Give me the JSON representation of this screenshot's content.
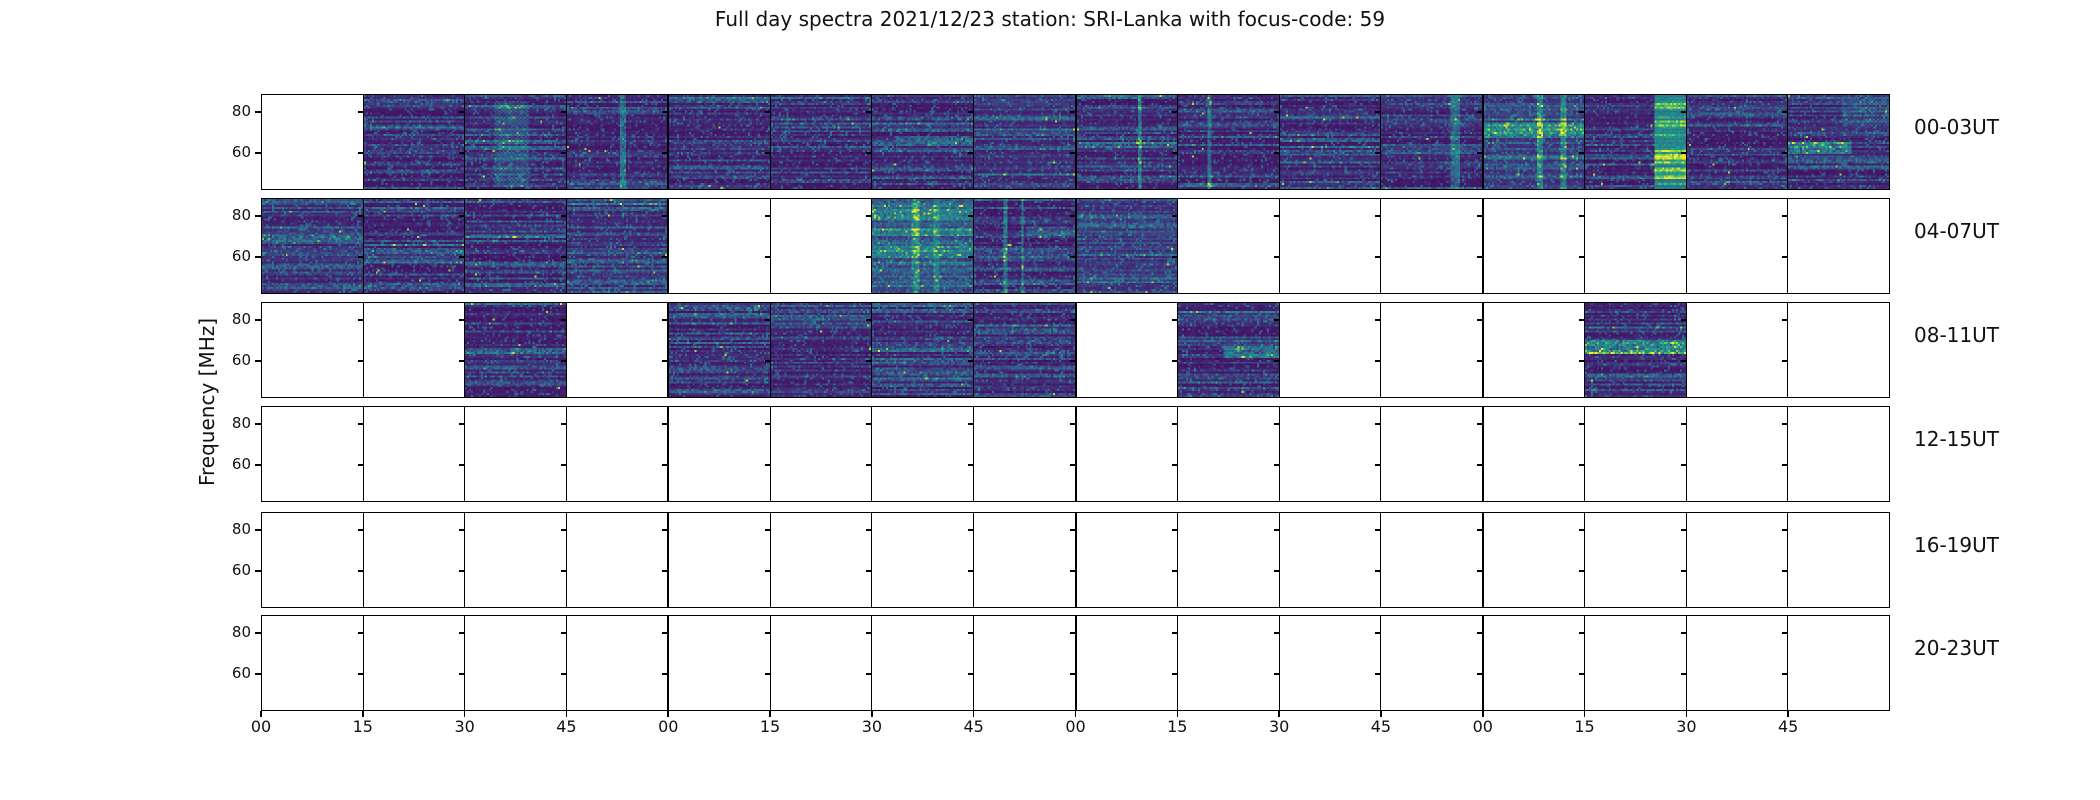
{
  "title": "Full day spectra 2021/12/23 station: SRI-Lanka with focus-code: 59",
  "colors": {
    "background": "#ffffff",
    "axis": "#000000",
    "spectrogram_base": "#440154",
    "speckle_blue": "#31688e",
    "speckle_teal": "#26828e",
    "burst_green": "#4ac16d",
    "burst_bright": "#fde725",
    "empty_panel": "#ffffff"
  },
  "chart_data": {
    "type": "heatmap",
    "title": "Full day spectra 2021/12/23 station: SRI-Lanka with focus-code: 59",
    "date": "2021/12/23",
    "station": "SRI-Lanka",
    "focus_code": "59",
    "ylabel": "Frequency [MHz]",
    "colormap": "viridis",
    "y_tick_labels": [
      "80",
      "60"
    ],
    "x_tick_labels": [
      "00",
      "15",
      "30",
      "45",
      "00",
      "15",
      "30",
      "45",
      "00",
      "15",
      "30",
      "45",
      "00",
      "15",
      "30",
      "45"
    ],
    "panels_per_row": 16,
    "panel_minutes": 15,
    "legend": "none",
    "grid": "panel borders only",
    "row_labels": [
      "00-03UT",
      "04-07UT",
      "08-11UT",
      "12-15UT",
      "16-19UT",
      "20-23UT"
    ],
    "rows": [
      {
        "label": "00-03UT",
        "panels": [
          {
            "d": 0
          },
          {
            "d": 1
          },
          {
            "d": 1,
            "f": [
              {
                "t": "patch",
                "x": 0.28,
                "y": 0.05,
                "w": 0.34,
                "h": 0.92,
                "v": 0.3
              }
            ]
          },
          {
            "d": 1,
            "f": [
              {
                "t": "vline",
                "x": 0.55,
                "w": 0.05,
                "v": 0.35
              }
            ]
          },
          {
            "d": 1
          },
          {
            "d": 1
          },
          {
            "d": 1,
            "f": [
              {
                "t": "hband",
                "y": 0.42,
                "h": 0.08,
                "v": 0.22,
                "x": 0.2,
                "w": 0.8
              }
            ]
          },
          {
            "d": 1,
            "b": 0.05
          },
          {
            "d": 1,
            "f": [
              {
                "t": "vline",
                "x": 0.62,
                "w": 0.05,
                "v": 0.4
              },
              {
                "t": "hband",
                "y": 0.5,
                "h": 0.06,
                "v": 0.28
              }
            ]
          },
          {
            "d": 1,
            "f": [
              {
                "t": "vline",
                "x": 0.3,
                "w": 0.04,
                "v": 0.35
              }
            ]
          },
          {
            "d": 1
          },
          {
            "d": 1,
            "f": [
              {
                "t": "vline",
                "x": 0.72,
                "w": 0.1,
                "v": 0.32
              },
              {
                "t": "hband",
                "y": 0.52,
                "h": 0.1,
                "v": 0.22
              }
            ]
          },
          {
            "d": 1,
            "b": 0.1,
            "f": [
              {
                "t": "hband",
                "y": 0.28,
                "h": 0.16,
                "v": 0.38
              },
              {
                "t": "vline",
                "x": 0.55,
                "w": 0.05,
                "v": 0.38
              },
              {
                "t": "vline",
                "x": 0.78,
                "w": 0.05,
                "v": 0.38
              }
            ]
          },
          {
            "d": 1,
            "f": [
              {
                "t": "hot",
                "x": 0.68,
                "w": 0.32
              }
            ]
          },
          {
            "d": 1
          },
          {
            "d": 1,
            "f": [
              {
                "t": "hband",
                "y": 0.5,
                "h": 0.12,
                "v": 0.42,
                "x": 0,
                "w": 0.62
              },
              {
                "t": "patch",
                "x": 0.52,
                "y": 0.03,
                "w": 0.48,
                "h": 0.3,
                "v": 0.22
              }
            ]
          }
        ]
      },
      {
        "label": "04-07UT",
        "panels": [
          {
            "d": 1,
            "b": 0.04
          },
          {
            "d": 1
          },
          {
            "d": 1
          },
          {
            "d": 1,
            "b": 0.04
          },
          {
            "d": 0
          },
          {
            "d": 0
          },
          {
            "d": 1,
            "b": 0.16,
            "f": [
              {
                "t": "hband",
                "y": 0.1,
                "h": 0.1,
                "v": 0.32
              },
              {
                "t": "hband",
                "y": 0.3,
                "h": 0.08,
                "v": 0.28
              },
              {
                "t": "hband",
                "y": 0.52,
                "h": 0.07,
                "v": 0.26
              },
              {
                "t": "vline",
                "x": 0.42,
                "w": 0.07,
                "v": 0.28
              },
              {
                "t": "vline",
                "x": 0.63,
                "w": 0.05,
                "v": 0.24
              }
            ]
          },
          {
            "d": 1,
            "f": [
              {
                "t": "vline",
                "x": 0.3,
                "w": 0.03,
                "v": 0.42
              },
              {
                "t": "vline",
                "x": 0.47,
                "w": 0.025,
                "v": 0.4
              },
              {
                "t": "hband",
                "y": 0.28,
                "h": 0.1,
                "v": 0.22,
                "x": 0.5,
                "w": 0.5
              },
              {
                "t": "hband",
                "y": 0.55,
                "h": 0.1,
                "v": 0.2
              }
            ]
          },
          {
            "d": 1,
            "b": 0.08
          },
          {
            "d": 0
          },
          {
            "d": 0
          },
          {
            "d": 0
          },
          {
            "d": 0
          },
          {
            "d": 0
          },
          {
            "d": 0
          },
          {
            "d": 0
          }
        ]
      },
      {
        "label": "08-11UT",
        "panels": [
          {
            "d": 0
          },
          {
            "d": 0
          },
          {
            "d": 1
          },
          {
            "d": 0
          },
          {
            "d": 1
          },
          {
            "d": 1
          },
          {
            "d": 1,
            "f": [
              {
                "t": "hband",
                "y": 0.45,
                "h": 0.07,
                "v": 0.2
              }
            ]
          },
          {
            "d": 1
          },
          {
            "d": 0
          },
          {
            "d": 1,
            "f": [
              {
                "t": "hband",
                "y": 0.45,
                "h": 0.12,
                "v": 0.4,
                "x": 0.45,
                "w": 0.55
              }
            ]
          },
          {
            "d": 0
          },
          {
            "d": 0
          },
          {
            "d": 0
          },
          {
            "d": 1,
            "f": [
              {
                "t": "hband",
                "y": 0.38,
                "h": 0.16,
                "v": 0.5
              }
            ]
          },
          {
            "d": 0
          },
          {
            "d": 0
          }
        ]
      },
      {
        "label": "12-15UT",
        "panels": [
          {
            "d": 0
          },
          {
            "d": 0
          },
          {
            "d": 0
          },
          {
            "d": 0
          },
          {
            "d": 0
          },
          {
            "d": 0
          },
          {
            "d": 0
          },
          {
            "d": 0
          },
          {
            "d": 0
          },
          {
            "d": 0
          },
          {
            "d": 0
          },
          {
            "d": 0
          },
          {
            "d": 0
          },
          {
            "d": 0
          },
          {
            "d": 0
          },
          {
            "d": 0
          }
        ]
      },
      {
        "label": "16-19UT",
        "panels": [
          {
            "d": 0
          },
          {
            "d": 0
          },
          {
            "d": 0
          },
          {
            "d": 0
          },
          {
            "d": 0
          },
          {
            "d": 0
          },
          {
            "d": 0
          },
          {
            "d": 0
          },
          {
            "d": 0
          },
          {
            "d": 0
          },
          {
            "d": 0
          },
          {
            "d": 0
          },
          {
            "d": 0
          },
          {
            "d": 0
          },
          {
            "d": 0
          },
          {
            "d": 0
          }
        ]
      },
      {
        "label": "20-23UT",
        "panels": [
          {
            "d": 0
          },
          {
            "d": 0
          },
          {
            "d": 0
          },
          {
            "d": 0
          },
          {
            "d": 0
          },
          {
            "d": 0
          },
          {
            "d": 0
          },
          {
            "d": 0
          },
          {
            "d": 0
          },
          {
            "d": 0
          },
          {
            "d": 0
          },
          {
            "d": 0
          },
          {
            "d": 0
          },
          {
            "d": 0
          },
          {
            "d": 0
          },
          {
            "d": 0
          }
        ]
      }
    ]
  }
}
